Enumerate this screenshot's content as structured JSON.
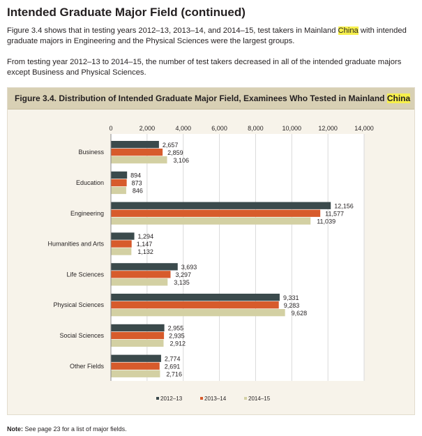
{
  "page": {
    "heading": "Intended Graduate Major Field (continued)",
    "para1_before": "Figure 3.4 shows that in testing years 2012–13, 2013–14, and 2014–15, test takers in Mainland ",
    "para1_highlight": "China",
    "para1_after": " with intended graduate majors in Engineering and the Physical Sciences were the largest groups.",
    "para2": "From testing year 2012–13 to 2014–15, the number of test takers decreased in all of the intended graduate majors except Business and Physical Sciences.",
    "note_label": "Note:",
    "note_text": " See page 23 for a list of major fields."
  },
  "chart_data": {
    "type": "bar",
    "orientation": "horizontal",
    "title_before": "Figure 3.4. Distribution of Intended Graduate Major Field, Examinees Who Tested in Mainland ",
    "title_highlight": "China",
    "categories": [
      "Business",
      "Education",
      "Engineering",
      "Humanities and Arts",
      "Life Sciences",
      "Physical Sciences",
      "Social Sciences",
      "Other Fields"
    ],
    "series": [
      {
        "name": "2012–13",
        "color": "#3b4a4c",
        "values": [
          2657,
          894,
          12156,
          1294,
          3693,
          9331,
          2955,
          2774
        ]
      },
      {
        "name": "2013–14",
        "color": "#d75b2c",
        "values": [
          2859,
          873,
          11577,
          1147,
          3297,
          9283,
          2935,
          2691
        ]
      },
      {
        "name": "2014–15",
        "color": "#d3d0a3",
        "values": [
          3106,
          846,
          11039,
          1132,
          3135,
          9628,
          2912,
          2716
        ]
      }
    ],
    "xlim": [
      0,
      14000
    ],
    "xticks": [
      0,
      2000,
      4000,
      6000,
      8000,
      10000,
      12000,
      14000
    ],
    "xtick_labels": [
      "0",
      "2,000",
      "4,000",
      "6,000",
      "8,000",
      "10,000",
      "12,000",
      "14,000"
    ],
    "gridlines": true,
    "legend_position": "bottom"
  }
}
